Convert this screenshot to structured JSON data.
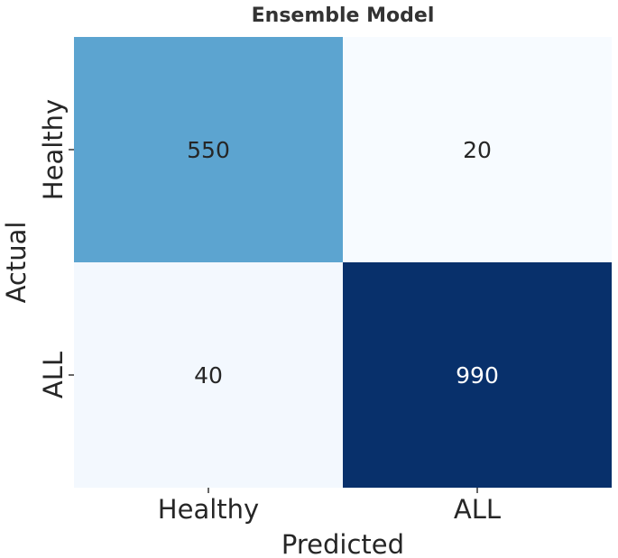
{
  "chart_data": {
    "type": "heatmap",
    "title": "Ensemble Model",
    "xlabel": "Predicted",
    "ylabel": "Actual",
    "x_categories": [
      "Healthy",
      "ALL"
    ],
    "y_categories": [
      "Healthy",
      "ALL"
    ],
    "values": [
      [
        550,
        20
      ],
      [
        40,
        990
      ]
    ],
    "colormap": "Blues",
    "vmin": 20,
    "vmax": 990,
    "colorbar": false,
    "grid": false
  }
}
